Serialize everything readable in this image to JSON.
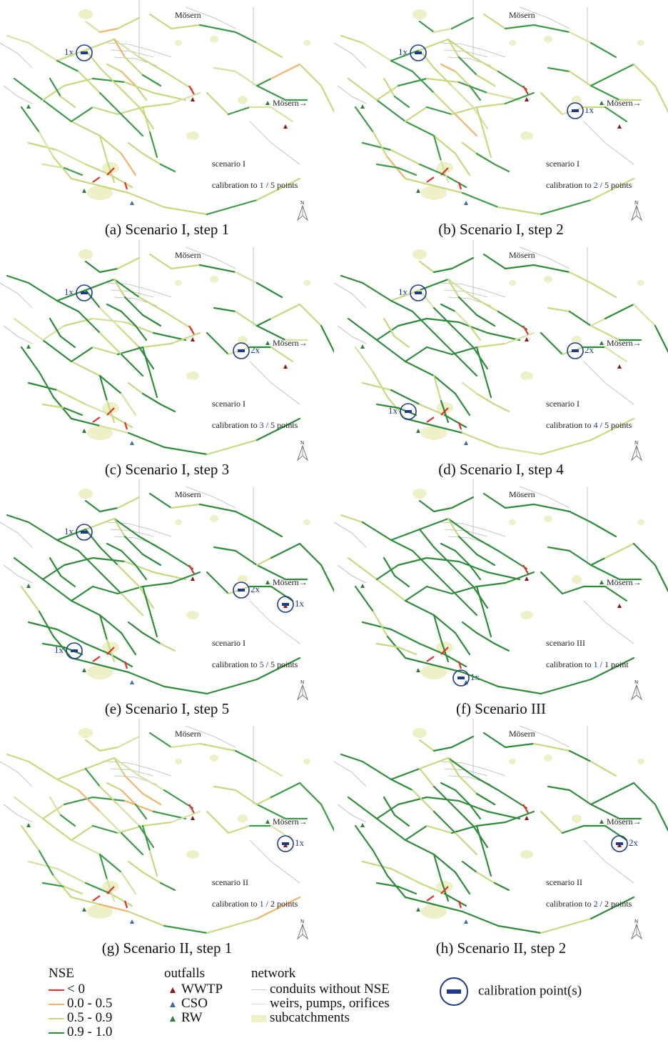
{
  "panels": [
    {
      "id": "a",
      "caption": "(a) Scenario I, step 1",
      "town_top": "Mösern",
      "town_right": "Mösern",
      "scenario": "scenario I",
      "calib_prefix": "calibration to ",
      "calib_n": "1",
      "calib_suffix": " / 5 points",
      "points": [
        {
          "label": "1x",
          "where": "nw"
        }
      ],
      "quality": "low"
    },
    {
      "id": "b",
      "caption": "(b) Scenario I, step 2",
      "town_top": "Mösern",
      "town_right": "Mösern",
      "scenario": "scenario I",
      "calib_prefix": "calibration to ",
      "calib_n": "2",
      "calib_suffix": " / 5 points",
      "points": [
        {
          "label": "1x",
          "where": "nw"
        },
        {
          "label": "1x",
          "where": "east"
        }
      ],
      "quality": "low"
    },
    {
      "id": "c",
      "caption": "(c) Scenario I, step 3",
      "town_top": "Mösern",
      "town_right": "Mösern",
      "scenario": "scenario I",
      "calib_prefix": "calibration to ",
      "calib_n": "3",
      "calib_suffix": " / 5 points",
      "points": [
        {
          "label": "1x",
          "where": "nw"
        },
        {
          "label": "2x",
          "where": "east"
        }
      ],
      "quality": "mid"
    },
    {
      "id": "d",
      "caption": "(d) Scenario I, step 4",
      "town_top": "Mösern",
      "town_right": "Mösern",
      "scenario": "scenario I",
      "calib_prefix": "calibration to ",
      "calib_n": "4",
      "calib_suffix": " / 5 points",
      "points": [
        {
          "label": "1x",
          "where": "nw"
        },
        {
          "label": "2x",
          "where": "east"
        },
        {
          "label": "1x",
          "where": "sw"
        }
      ],
      "quality": "mid"
    },
    {
      "id": "e",
      "caption": "(e) Scenario I, step 5",
      "town_top": "Mösern",
      "town_right": "Mösern",
      "scenario": "scenario I",
      "calib_prefix": "calibration to ",
      "calib_n": "5",
      "calib_suffix": " / 5 points",
      "points": [
        {
          "label": "1x",
          "where": "nw"
        },
        {
          "label": "2x",
          "where": "east"
        },
        {
          "label": "1x",
          "where": "far-east"
        },
        {
          "label": "1x",
          "where": "sw"
        }
      ],
      "quality": "high"
    },
    {
      "id": "f",
      "caption": "(f) Scenario III",
      "town_top": "Mösern",
      "town_right": "Mösern",
      "scenario": "scenario III",
      "calib_prefix": "calibration to ",
      "calib_n": "1",
      "calib_suffix": " / 1 point",
      "points": [
        {
          "label": "1x",
          "where": "south"
        }
      ],
      "quality": "high"
    },
    {
      "id": "g",
      "caption": "(g) Scenario II, step 1",
      "town_top": "Mösern",
      "town_right": "Mösern",
      "scenario": "scenario II",
      "calib_prefix": "calibration to ",
      "calib_n": "1",
      "calib_suffix": " / 2 points",
      "points": [
        {
          "label": "1x",
          "where": "far-east"
        }
      ],
      "quality": "low"
    },
    {
      "id": "h",
      "caption": "(h) Scenario II, step 2",
      "town_top": "Mösern",
      "town_right": "Mösern",
      "scenario": "scenario II",
      "calib_prefix": "calibration to ",
      "calib_n": "2",
      "calib_suffix": " / 2 points",
      "points": [
        {
          "label": "2x",
          "where": "far-east"
        }
      ],
      "quality": "high"
    }
  ],
  "legend": {
    "nse": {
      "title": "NSE",
      "items": [
        {
          "label": "< 0",
          "color": "#e0302a"
        },
        {
          "label": "0.0 - 0.5",
          "color": "#f2b36b"
        },
        {
          "label": "0.5 - 0.9",
          "color": "#c5d97f"
        },
        {
          "label": "0.9 - 1.0",
          "color": "#2e8b3a"
        }
      ]
    },
    "outfalls": {
      "title": "outfalls",
      "items": [
        {
          "label": "WWTP",
          "color": "#8b1a1a"
        },
        {
          "label": "CSO",
          "color": "#3a6e9e"
        },
        {
          "label": "RW",
          "color": "#2e7d32"
        }
      ]
    },
    "network": {
      "title": "network",
      "items": [
        {
          "label": "conduits without NSE",
          "kind": "line",
          "color": "#c8c8c8"
        },
        {
          "label": "weirs, pumps, orifices",
          "kind": "line",
          "color": "#dddddd"
        },
        {
          "label": "subcatchments",
          "kind": "fill",
          "color": "#eef0c8"
        }
      ]
    },
    "calibration": {
      "label": "calibration point(s)"
    }
  },
  "colors": {
    "calib_blue": "#1f3a8a"
  }
}
